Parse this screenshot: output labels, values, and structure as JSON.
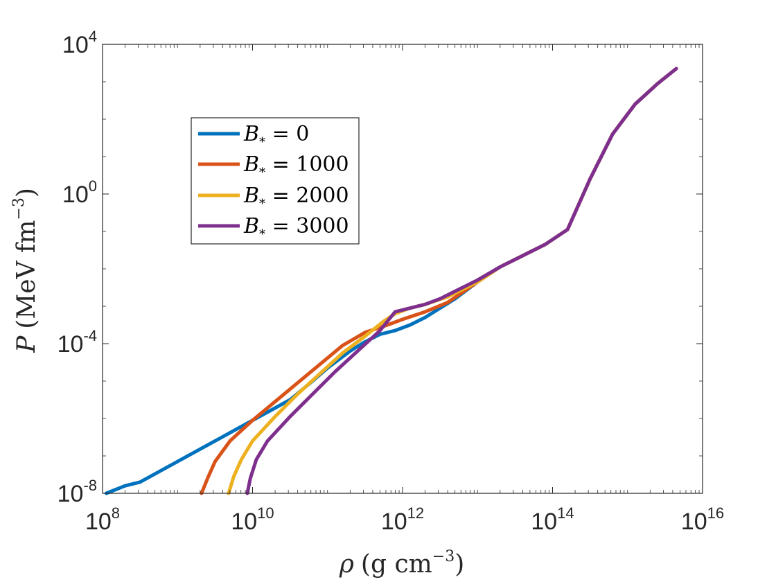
{
  "chart_data": {
    "type": "line",
    "xscale": "log",
    "yscale": "log",
    "xlim": [
      100000000.0,
      1e+16
    ],
    "ylim": [
      1e-08,
      10000.0
    ],
    "xticks": [
      {
        "base": "10",
        "exp": "8"
      },
      {
        "base": "10",
        "exp": "10"
      },
      {
        "base": "10",
        "exp": "12"
      },
      {
        "base": "10",
        "exp": "14"
      },
      {
        "base": "10",
        "exp": "16"
      }
    ],
    "yticks": [
      {
        "base": "10",
        "exp": "-8"
      },
      {
        "base": "10",
        "exp": "-4"
      },
      {
        "base": "10",
        "exp": "0"
      },
      {
        "base": "10",
        "exp": "4"
      }
    ],
    "xlabel": {
      "symbol": "ρ",
      "units": "(g cm",
      "exp": "−3",
      "close": ")"
    },
    "ylabel": {
      "symbol": "P",
      "units": "(MeV fm",
      "exp": "−3",
      "close": ")"
    },
    "legend_position": "top-left",
    "series": [
      {
        "name": "B* = 0",
        "label_main": "B",
        "label_sub": "*",
        "label_value": " = 0",
        "color": "#0072BD",
        "points": [
          [
            8.05,
            -8.0
          ],
          [
            8.3,
            -7.8
          ],
          [
            8.5,
            -7.7
          ],
          [
            9.0,
            -7.15
          ],
          [
            9.5,
            -6.6
          ],
          [
            10.0,
            -6.05
          ],
          [
            10.5,
            -5.5
          ],
          [
            10.8,
            -5.0
          ],
          [
            11.0,
            -4.65
          ],
          [
            11.3,
            -4.2
          ],
          [
            11.5,
            -3.95
          ],
          [
            11.7,
            -3.75
          ],
          [
            11.9,
            -3.65
          ],
          [
            12.1,
            -3.5
          ],
          [
            12.3,
            -3.3
          ],
          [
            12.5,
            -3.05
          ],
          [
            12.7,
            -2.8
          ],
          [
            13.0,
            -2.35
          ],
          [
            13.3,
            -1.95
          ],
          [
            13.6,
            -1.65
          ],
          [
            13.9,
            -1.35
          ],
          [
            14.2,
            -0.95
          ],
          [
            14.5,
            0.4
          ],
          [
            14.8,
            1.6
          ],
          [
            15.1,
            2.4
          ],
          [
            15.4,
            2.95
          ],
          [
            15.65,
            3.35
          ]
        ]
      },
      {
        "name": "B* = 1000",
        "label_main": "B",
        "label_sub": "*",
        "label_value": " = 1000",
        "color": "#D95319",
        "points": [
          [
            9.32,
            -8.0
          ],
          [
            9.4,
            -7.6
          ],
          [
            9.5,
            -7.15
          ],
          [
            9.7,
            -6.6
          ],
          [
            10.0,
            -6.05
          ],
          [
            10.3,
            -5.55
          ],
          [
            10.6,
            -5.05
          ],
          [
            10.9,
            -4.55
          ],
          [
            11.2,
            -4.05
          ],
          [
            11.5,
            -3.7
          ],
          [
            11.8,
            -3.5
          ],
          [
            12.0,
            -3.35
          ],
          [
            12.3,
            -3.15
          ],
          [
            12.6,
            -2.9
          ],
          [
            13.0,
            -2.35
          ],
          [
            13.3,
            -1.95
          ],
          [
            13.6,
            -1.65
          ],
          [
            13.9,
            -1.35
          ],
          [
            14.2,
            -0.95
          ],
          [
            14.5,
            0.4
          ],
          [
            14.8,
            1.6
          ],
          [
            15.1,
            2.4
          ],
          [
            15.4,
            2.95
          ],
          [
            15.65,
            3.35
          ]
        ]
      },
      {
        "name": "B* = 2000",
        "label_main": "B",
        "label_sub": "*",
        "label_value": " = 2000",
        "color": "#EDB120",
        "points": [
          [
            9.68,
            -8.0
          ],
          [
            9.75,
            -7.55
          ],
          [
            9.85,
            -7.1
          ],
          [
            10.0,
            -6.6
          ],
          [
            10.3,
            -5.95
          ],
          [
            10.6,
            -5.35
          ],
          [
            10.9,
            -4.8
          ],
          [
            11.2,
            -4.25
          ],
          [
            11.5,
            -3.8
          ],
          [
            11.75,
            -3.4
          ],
          [
            11.9,
            -3.2
          ],
          [
            12.1,
            -3.05
          ],
          [
            12.3,
            -2.95
          ],
          [
            12.6,
            -2.75
          ],
          [
            13.0,
            -2.35
          ],
          [
            13.3,
            -1.95
          ],
          [
            13.6,
            -1.65
          ],
          [
            13.9,
            -1.35
          ],
          [
            14.2,
            -0.95
          ],
          [
            14.5,
            0.4
          ],
          [
            14.8,
            1.6
          ],
          [
            15.1,
            2.4
          ],
          [
            15.4,
            2.95
          ],
          [
            15.65,
            3.35
          ]
        ]
      },
      {
        "name": "B* = 3000",
        "label_main": "B",
        "label_sub": "*",
        "label_value": " = 3000",
        "color": "#7E2F8E",
        "points": [
          [
            9.93,
            -8.0
          ],
          [
            9.97,
            -7.6
          ],
          [
            10.05,
            -7.1
          ],
          [
            10.2,
            -6.6
          ],
          [
            10.5,
            -5.95
          ],
          [
            10.8,
            -5.35
          ],
          [
            11.1,
            -4.75
          ],
          [
            11.4,
            -4.2
          ],
          [
            11.7,
            -3.65
          ],
          [
            11.9,
            -3.15
          ],
          [
            12.1,
            -3.05
          ],
          [
            12.3,
            -2.95
          ],
          [
            12.5,
            -2.8
          ],
          [
            12.7,
            -2.6
          ],
          [
            13.0,
            -2.3
          ],
          [
            13.3,
            -1.95
          ],
          [
            13.6,
            -1.65
          ],
          [
            13.9,
            -1.35
          ],
          [
            14.2,
            -0.95
          ],
          [
            14.5,
            0.4
          ],
          [
            14.8,
            1.6
          ],
          [
            15.1,
            2.4
          ],
          [
            15.4,
            2.95
          ],
          [
            15.65,
            3.35
          ]
        ]
      }
    ]
  }
}
